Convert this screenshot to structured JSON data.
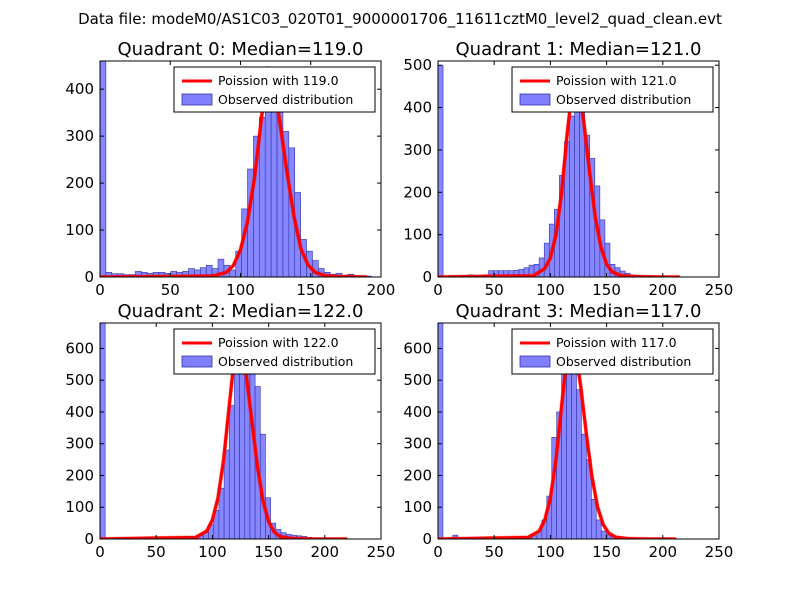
{
  "figure": {
    "suptitle": "Data file: modeM0/AS1C03_020T01_9000001706_11611cztM0_level2_quad_clean.evt"
  },
  "colors": {
    "bar_fill": "#7f7fff",
    "bar_edge": "#3333aa",
    "curve": "#ff0000",
    "axis": "#000000"
  },
  "chart_data": [
    {
      "type": "bar",
      "title": "Quadrant 0: Median=119.0",
      "median": 119.0,
      "legend": [
        "Poission with 119.0",
        "Observed distribution"
      ],
      "legend_position": "top-right",
      "xlim": [
        0,
        200
      ],
      "ylim": [
        0,
        460
      ],
      "xticks": [
        0,
        50,
        100,
        150,
        200
      ],
      "yticks": [
        0,
        100,
        200,
        300,
        400
      ],
      "bin_width": 4.2,
      "hist_x": [
        0,
        4.2,
        8.4,
        12.6,
        16.8,
        21,
        25.2,
        29.4,
        33.6,
        37.8,
        42,
        46.2,
        50.4,
        54.6,
        58.8,
        63,
        67.2,
        71.4,
        75.6,
        79.8,
        84,
        88.2,
        92.4,
        96.6,
        100.8,
        105,
        109.2,
        113.4,
        117.6,
        121.8,
        126,
        130.2,
        134.4,
        138.6,
        142.8,
        147,
        151.2,
        155.4,
        159.6,
        163.8,
        168,
        172.2,
        176.4,
        180.4,
        184.6,
        188.8
      ],
      "hist_y": [
        460,
        10,
        7,
        7,
        5,
        5,
        12,
        10,
        8,
        10,
        10,
        8,
        12,
        10,
        12,
        18,
        15,
        20,
        25,
        18,
        38,
        25,
        15,
        55,
        145,
        230,
        300,
        340,
        400,
        445,
        390,
        310,
        275,
        180,
        80,
        55,
        35,
        18,
        10,
        6,
        8,
        4,
        6,
        3,
        2,
        2
      ],
      "curve_x": [
        0,
        80,
        90,
        95,
        100,
        105,
        110,
        115,
        119,
        123,
        128,
        133,
        138,
        143,
        148,
        153,
        160,
        170,
        190
      ],
      "curve_y": [
        0,
        2,
        10,
        25,
        58,
        118,
        212,
        340,
        445,
        420,
        330,
        225,
        130,
        60,
        26,
        10,
        3,
        1,
        0
      ]
    },
    {
      "type": "bar",
      "title": "Quadrant 1: Median=121.0",
      "median": 121.0,
      "legend": [
        "Poission with 121.0",
        "Observed distribution"
      ],
      "legend_position": "top-right",
      "xlim": [
        0,
        250
      ],
      "ylim": [
        0,
        510
      ],
      "xticks": [
        0,
        50,
        100,
        150,
        200,
        250
      ],
      "yticks": [
        0,
        100,
        200,
        300,
        400,
        500
      ],
      "bin_width": 4.5,
      "hist_x": [
        0,
        4.5,
        9,
        13.5,
        18,
        22.5,
        27,
        31.5,
        36,
        40.5,
        45,
        49.5,
        54,
        58.5,
        63,
        67.5,
        72,
        76.5,
        81,
        85.5,
        90,
        94.5,
        99,
        103.5,
        108,
        112.5,
        117,
        121.5,
        126,
        130.5,
        135,
        139.5,
        144,
        148.5,
        153,
        157.5,
        162,
        166.5,
        171,
        175.5,
        180,
        184.5,
        189,
        193.5,
        198,
        202.5
      ],
      "hist_y": [
        500,
        3,
        3,
        3,
        3,
        4,
        5,
        3,
        4,
        5,
        15,
        15,
        15,
        15,
        15,
        16,
        18,
        22,
        28,
        30,
        45,
        80,
        125,
        160,
        240,
        320,
        380,
        475,
        420,
        335,
        280,
        215,
        135,
        80,
        30,
        22,
        14,
        9,
        5,
        4,
        3,
        2,
        2,
        1,
        1,
        1
      ],
      "curve_x": [
        0,
        85,
        95,
        100,
        105,
        110,
        115,
        121,
        125,
        130,
        135,
        140,
        145,
        150,
        155,
        162,
        175,
        200,
        215
      ],
      "curve_y": [
        0,
        3,
        20,
        45,
        100,
        200,
        340,
        480,
        455,
        360,
        245,
        140,
        70,
        30,
        12,
        4,
        1,
        0,
        0
      ]
    },
    {
      "type": "bar",
      "title": "Quadrant 2: Median=122.0",
      "median": 122.0,
      "legend": [
        "Poission with 122.0",
        "Observed distribution"
      ],
      "legend_position": "top-right",
      "xlim": [
        0,
        250
      ],
      "ylim": [
        0,
        680
      ],
      "xticks": [
        0,
        50,
        100,
        150,
        200,
        250
      ],
      "yticks": [
        0,
        100,
        200,
        300,
        400,
        500,
        600
      ],
      "bin_width": 4.6,
      "hist_x": [
        0,
        4.6,
        9.2,
        13.8,
        18.4,
        23,
        27.6,
        32.2,
        36.8,
        41.4,
        46,
        50.6,
        55.2,
        59.8,
        64.4,
        69,
        73.6,
        78.2,
        82.8,
        87.4,
        92,
        96.6,
        101.2,
        105.8,
        110.4,
        115,
        119.6,
        124.2,
        128.8,
        133.4,
        138,
        142.6,
        147.2,
        151.8,
        156.4,
        161,
        165.6,
        170.2,
        174.8,
        179.4,
        184,
        188.6,
        193.2,
        197.8,
        202.4,
        207,
        211.6,
        216.2
      ],
      "hist_y": [
        680,
        2,
        2,
        2,
        2,
        2,
        2,
        2,
        2,
        2,
        2,
        2,
        2,
        2,
        2,
        2,
        2,
        2,
        2,
        10,
        20,
        45,
        90,
        160,
        280,
        420,
        520,
        610,
        640,
        560,
        480,
        330,
        130,
        50,
        30,
        20,
        15,
        12,
        10,
        8,
        5,
        3,
        3,
        2,
        2,
        2,
        2,
        1
      ],
      "curve_x": [
        0,
        85,
        95,
        100,
        105,
        110,
        115,
        122,
        126,
        130,
        135,
        140,
        145,
        150,
        155,
        160,
        170,
        190,
        220
      ],
      "curve_y": [
        0,
        5,
        25,
        60,
        130,
        250,
        420,
        650,
        610,
        520,
        375,
        230,
        120,
        55,
        22,
        8,
        2,
        0,
        0
      ]
    },
    {
      "type": "bar",
      "title": "Quadrant 3: Median=117.0",
      "median": 117.0,
      "legend": [
        "Poission with 117.0",
        "Observed distribution"
      ],
      "legend_position": "top-right",
      "xlim": [
        0,
        250
      ],
      "ylim": [
        0,
        680
      ],
      "xticks": [
        0,
        50,
        100,
        150,
        200,
        250
      ],
      "yticks": [
        0,
        100,
        200,
        300,
        400,
        500,
        600
      ],
      "bin_width": 4.4,
      "hist_x": [
        0,
        4.4,
        8.8,
        13.2,
        17.6,
        22,
        26.4,
        30.8,
        35.2,
        39.6,
        44,
        48.4,
        52.8,
        57.2,
        61.6,
        66,
        70.4,
        74.8,
        79.2,
        83.6,
        88,
        92.4,
        96.8,
        101.2,
        105.6,
        110,
        114.4,
        118.8,
        123.2,
        127.6,
        132,
        136.4,
        140.8,
        145.2,
        149.6,
        154,
        158.4,
        162.8,
        167.2,
        171.6,
        176,
        180.4,
        184.8,
        189.2,
        193.6,
        198,
        202.4,
        206.8
      ],
      "hist_y": [
        680,
        2,
        2,
        12,
        2,
        2,
        2,
        2,
        2,
        2,
        2,
        2,
        2,
        2,
        2,
        2,
        2,
        2,
        5,
        10,
        25,
        60,
        135,
        320,
        400,
        550,
        620,
        550,
        470,
        330,
        250,
        125,
        60,
        25,
        15,
        8,
        5,
        3,
        2,
        2,
        2,
        1,
        1,
        1,
        1,
        1,
        1,
        1
      ],
      "curve_x": [
        0,
        80,
        90,
        95,
        100,
        105,
        110,
        117,
        122,
        127,
        132,
        137,
        142,
        147,
        152,
        158,
        170,
        190,
        212
      ],
      "curve_y": [
        0,
        5,
        25,
        60,
        130,
        250,
        420,
        650,
        600,
        480,
        330,
        195,
        100,
        45,
        18,
        6,
        1,
        0,
        0
      ]
    }
  ]
}
